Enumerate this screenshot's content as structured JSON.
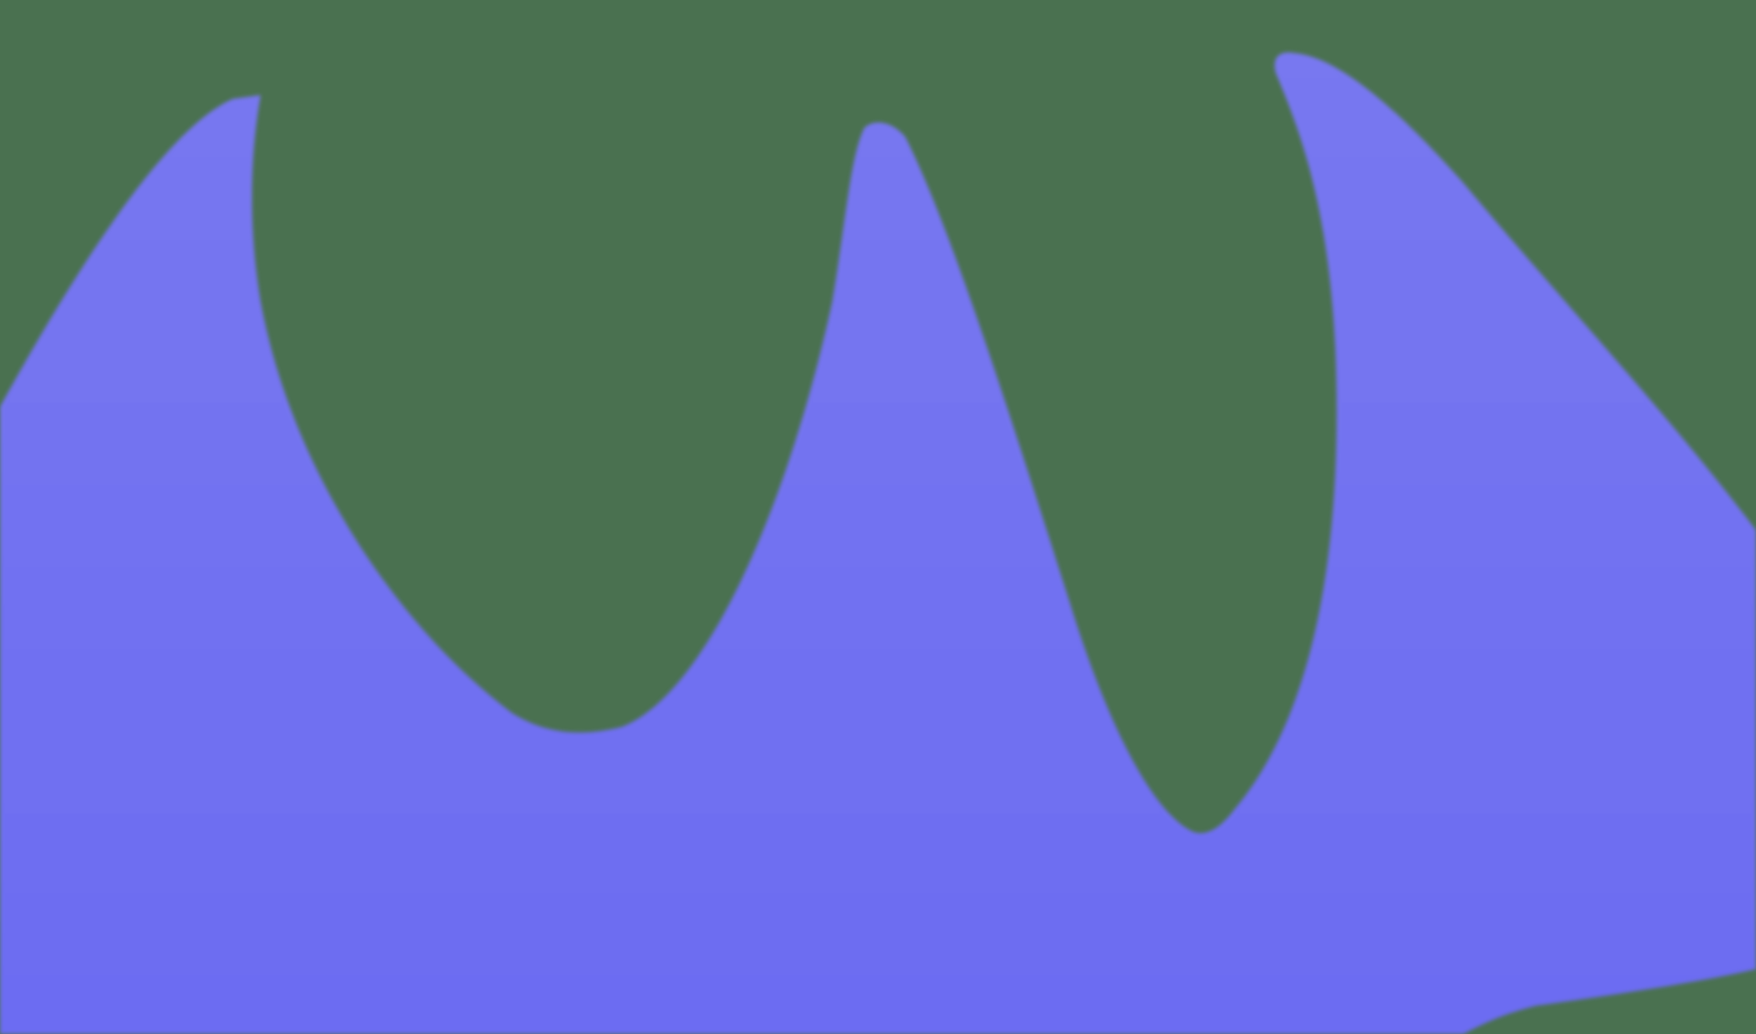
{
  "colors": {
    "background": "#4A7150",
    "shape_top": "#7878F0",
    "shape_bottom": "#6C6CF2"
  },
  "shapes": [
    {
      "name": "wavy-blob-shape",
      "description_type": "decorative"
    }
  ]
}
